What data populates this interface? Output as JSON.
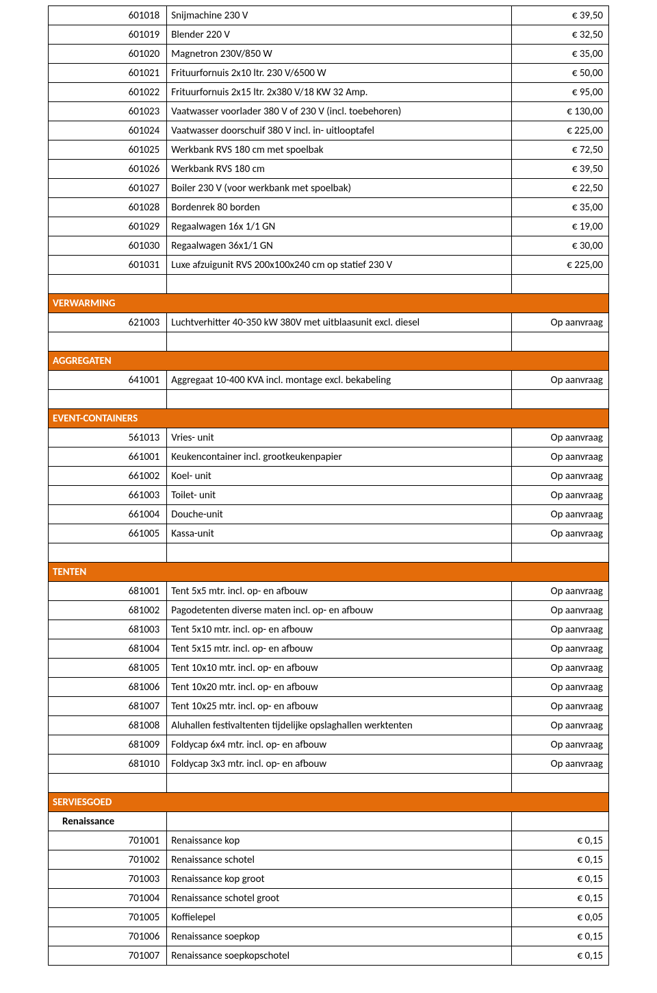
{
  "colors": {
    "section_bg": "#e46c0a",
    "section_text": "#ffffff",
    "border": "#000000",
    "text": "#000000"
  },
  "sections": [
    {
      "type": "rows",
      "rows": [
        {
          "code": "601018",
          "desc": "Snijmachine 230 V",
          "price": "€ 39,50"
        },
        {
          "code": "601019",
          "desc": "Blender 220 V",
          "price": "€ 32,50"
        },
        {
          "code": "601020",
          "desc": "Magnetron 230V/850 W",
          "price": "€ 35,00"
        },
        {
          "code": "601021",
          "desc": "Frituurfornuis 2x10 ltr. 230 V/6500 W",
          "price": "€ 50,00"
        },
        {
          "code": "601022",
          "desc": "Frituurfornuis 2x15 ltr. 2x380 V/18 KW 32 Amp.",
          "price": "€ 95,00"
        },
        {
          "code": "601023",
          "desc": "Vaatwasser voorlader 380 V of 230 V (incl. toebehoren)",
          "price": "€ 130,00"
        },
        {
          "code": "601024",
          "desc": "Vaatwasser doorschuif 380 V incl. in- uitlooptafel",
          "price": "€ 225,00"
        },
        {
          "code": "601025",
          "desc": "Werkbank RVS 180 cm met spoelbak",
          "price": "€ 72,50"
        },
        {
          "code": "601026",
          "desc": "Werkbank RVS 180 cm",
          "price": "€ 39,50"
        },
        {
          "code": "601027",
          "desc": "Boiler 230 V (voor werkbank met spoelbak)",
          "price": "€ 22,50"
        },
        {
          "code": "601028",
          "desc": "Bordenrek 80 borden",
          "price": "€ 35,00"
        },
        {
          "code": "601029",
          "desc": "Regaalwagen 16x 1/1 GN",
          "price": "€ 19,00"
        },
        {
          "code": "601030",
          "desc": "Regaalwagen 36x1/1 GN",
          "price": "€ 30,00"
        },
        {
          "code": "601031",
          "desc": "Luxe afzuigunit RVS 200x100x240 cm op statief 230 V",
          "price": "€ 225,00"
        }
      ]
    },
    {
      "type": "spacer"
    },
    {
      "type": "header",
      "title": "VERWARMING"
    },
    {
      "type": "rows",
      "rows": [
        {
          "code": "621003",
          "desc": "Luchtverhitter 40-350 kW 380V met uitblaasunit excl. diesel",
          "price": "Op aanvraag"
        }
      ]
    },
    {
      "type": "spacer"
    },
    {
      "type": "header",
      "title": "AGGREGATEN"
    },
    {
      "type": "rows",
      "rows": [
        {
          "code": "641001",
          "desc": "Aggregaat 10-400 KVA incl. montage excl. bekabeling",
          "price": "Op aanvraag"
        }
      ]
    },
    {
      "type": "spacer"
    },
    {
      "type": "header",
      "title": "EVENT-CONTAINERS"
    },
    {
      "type": "rows",
      "rows": [
        {
          "code": "561013",
          "desc": "Vries- unit",
          "price": "Op aanvraag"
        },
        {
          "code": "661001",
          "desc": "Keukencontainer incl. grootkeukenpapier",
          "price": "Op aanvraag"
        },
        {
          "code": "661002",
          "desc": "Koel- unit",
          "price": "Op aanvraag"
        },
        {
          "code": "661003",
          "desc": "Toilet- unit",
          "price": "Op aanvraag"
        },
        {
          "code": "661004",
          "desc": "Douche-unit",
          "price": "Op aanvraag"
        },
        {
          "code": "661005",
          "desc": "Kassa-unit",
          "price": "Op aanvraag"
        }
      ]
    },
    {
      "type": "spacer"
    },
    {
      "type": "header",
      "title": "TENTEN"
    },
    {
      "type": "rows",
      "rows": [
        {
          "code": "681001",
          "desc": "Tent 5x5 mtr. incl. op- en afbouw",
          "price": "Op aanvraag"
        },
        {
          "code": "681002",
          "desc": "Pagodetenten diverse maten incl. op- en afbouw",
          "price": "Op aanvraag"
        },
        {
          "code": "681003",
          "desc": "Tent 5x10 mtr. incl. op- en afbouw",
          "price": "Op aanvraag"
        },
        {
          "code": "681004",
          "desc": "Tent 5x15 mtr. incl. op- en afbouw",
          "price": "Op aanvraag"
        },
        {
          "code": "681005",
          "desc": "Tent 10x10 mtr. incl. op- en afbouw",
          "price": "Op aanvraag"
        },
        {
          "code": "681006",
          "desc": "Tent 10x20 mtr. incl. op- en afbouw",
          "price": "Op aanvraag"
        },
        {
          "code": "681007",
          "desc": "Tent 10x25 mtr. incl. op- en afbouw",
          "price": "Op aanvraag"
        },
        {
          "code": "681008",
          "desc": "Aluhallen festivaltenten tijdelijke opslaghallen werktenten",
          "price": "Op aanvraag"
        },
        {
          "code": "681009",
          "desc": "Foldycap 6x4 mtr. incl. op- en afbouw",
          "price": "Op aanvraag"
        },
        {
          "code": "681010",
          "desc": "Foldycap 3x3 mtr. incl. op- en afbouw",
          "price": "Op aanvraag"
        }
      ]
    },
    {
      "type": "spacer"
    },
    {
      "type": "header",
      "title": "SERVIESGOED"
    },
    {
      "type": "subheader",
      "title": "Renaissance"
    },
    {
      "type": "rows",
      "rows": [
        {
          "code": "701001",
          "desc": "Renaissance kop",
          "price": "€ 0,15"
        },
        {
          "code": "701002",
          "desc": "Renaissance schotel",
          "price": "€ 0,15"
        },
        {
          "code": "701003",
          "desc": "Renaissance kop groot",
          "price": "€ 0,15"
        },
        {
          "code": "701004",
          "desc": "Renaissance schotel groot",
          "price": "€ 0,15"
        },
        {
          "code": "701005",
          "desc": "Koffielepel",
          "price": "€ 0,05"
        },
        {
          "code": "701006",
          "desc": "Renaissance soepkop",
          "price": "€ 0,15"
        },
        {
          "code": "701007",
          "desc": "Renaissance soepkopschotel",
          "price": "€ 0,15"
        }
      ]
    }
  ]
}
